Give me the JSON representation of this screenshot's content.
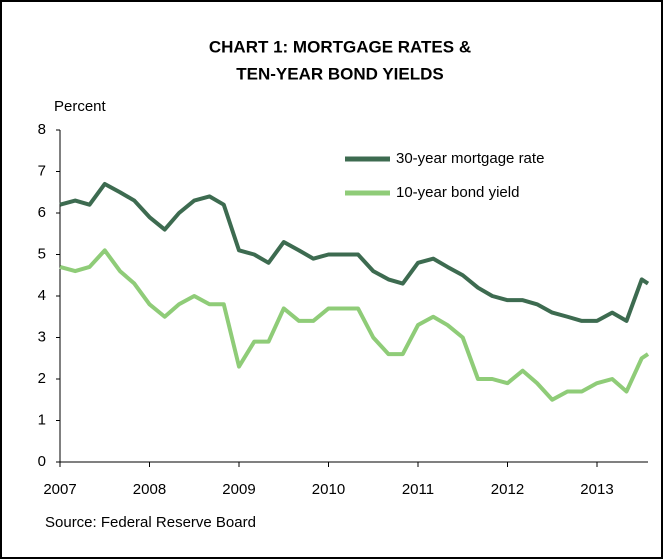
{
  "chart_data": {
    "type": "line",
    "title": [
      "CHART 1: MORTGAGE RATES &",
      "TEN-YEAR BOND YIELDS"
    ],
    "ylabel": "Percent",
    "source": "Source: Federal Reserve Board",
    "x": [
      2007,
      2007.17,
      2007.33,
      2007.5,
      2007.67,
      2007.83,
      2008,
      2008.17,
      2008.33,
      2008.5,
      2008.67,
      2008.83,
      2009,
      2009.17,
      2009.33,
      2009.5,
      2009.67,
      2009.83,
      2010,
      2010.17,
      2010.33,
      2010.5,
      2010.67,
      2010.83,
      2011,
      2011.17,
      2011.33,
      2011.5,
      2011.67,
      2011.83,
      2012,
      2012.17,
      2012.33,
      2012.5,
      2012.67,
      2012.83,
      2013,
      2013.17,
      2013.33,
      2013.5,
      2013.57
    ],
    "series": [
      {
        "name": "30-year mortgage rate",
        "color": "#3d6b50",
        "values": [
          6.2,
          6.3,
          6.2,
          6.7,
          6.5,
          6.3,
          5.9,
          5.6,
          6.0,
          6.3,
          6.4,
          6.2,
          5.1,
          5.0,
          4.8,
          5.3,
          5.1,
          4.9,
          5.0,
          5.0,
          5.0,
          4.6,
          4.4,
          4.3,
          4.8,
          4.9,
          4.7,
          4.5,
          4.2,
          4.0,
          3.9,
          3.9,
          3.8,
          3.6,
          3.5,
          3.4,
          3.4,
          3.6,
          3.4,
          4.4,
          4.3
        ]
      },
      {
        "name": "10-year bond yield",
        "color": "#8fcc78",
        "values": [
          4.7,
          4.6,
          4.7,
          5.1,
          4.6,
          4.3,
          3.8,
          3.5,
          3.8,
          4.0,
          3.8,
          3.8,
          2.3,
          2.9,
          2.9,
          3.7,
          3.4,
          3.4,
          3.7,
          3.7,
          3.7,
          3.0,
          2.6,
          2.6,
          3.3,
          3.5,
          3.3,
          3.0,
          2.0,
          2.0,
          1.9,
          2.2,
          1.9,
          1.5,
          1.7,
          1.7,
          1.9,
          2.0,
          1.7,
          2.5,
          2.6
        ]
      }
    ],
    "xlim": [
      2007,
      2013.57
    ],
    "xticks": [
      2007,
      2008,
      2009,
      2010,
      2011,
      2012,
      2013
    ],
    "ylim": [
      0,
      8
    ],
    "yticks": [
      0,
      1,
      2,
      3,
      4,
      5,
      6,
      7,
      8
    ],
    "grid": false,
    "legend": "top-right"
  }
}
